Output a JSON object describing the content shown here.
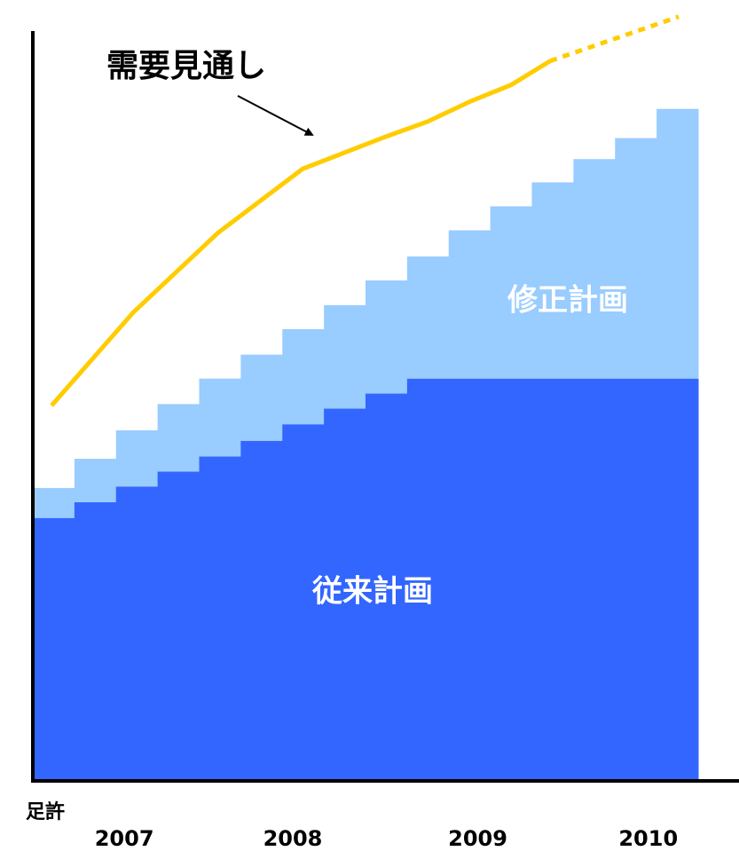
{
  "chart_data": {
    "type": "stepped_stacked_bar",
    "categories": [
      null,
      null,
      null,
      null,
      null,
      null,
      null,
      null,
      null,
      null,
      null,
      null,
      null,
      null,
      null,
      null
    ],
    "xlim": [
      0,
      16
    ],
    "ylim": [
      0,
      104
    ],
    "xticks": [
      {
        "value": 0.3,
        "label": "足許"
      },
      {
        "value": 2.2,
        "label": "2007"
      },
      {
        "value": 6.25,
        "label": "2008"
      },
      {
        "value": 10.7,
        "label": "2009"
      },
      {
        "value": 14.8,
        "label": "2010"
      }
    ],
    "series": [
      {
        "name": "従来計画",
        "color": "#3366ff",
        "values": [
          35.1,
          37.2,
          39.3,
          41.3,
          43.3,
          45.4,
          47.6,
          49.7,
          51.7,
          53.7,
          53.7,
          53.7,
          53.7,
          53.7,
          53.7,
          53.7
        ]
      },
      {
        "name": "修正計画",
        "color": "#99ccff",
        "values": [
          4.0,
          5.8,
          7.5,
          9.0,
          10.4,
          11.5,
          12.7,
          13.8,
          15.1,
          16.3,
          19.8,
          23.0,
          26.2,
          29.3,
          32.1,
          36.0
        ]
      }
    ],
    "lines": [
      {
        "name": "需要見通し",
        "color": "#ffcc00",
        "dash_from": 8,
        "x": [
          0.45,
          2.41,
          4.44,
          6.49,
          8.49,
          9.49,
          10.52,
          11.5,
          12.44,
          15.53
        ],
        "values": [
          50.1,
          62.5,
          73.1,
          81.7,
          86.0,
          88.0,
          90.7,
          92.9,
          96.1,
          102.0
        ]
      }
    ]
  }
}
